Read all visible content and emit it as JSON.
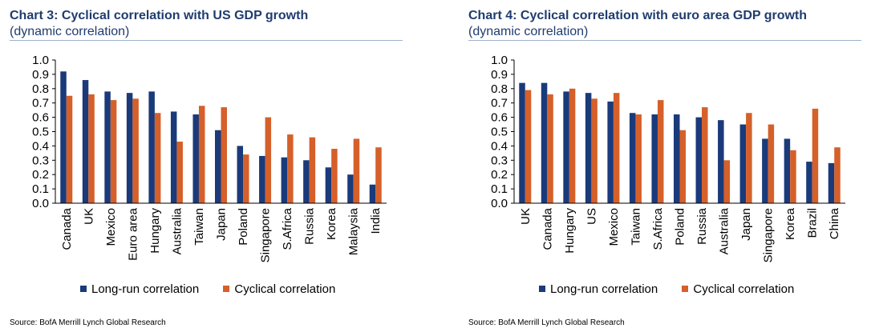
{
  "colors": {
    "long_run": "#1a3a7a",
    "cyclical": "#d5602a",
    "axis": "#000000"
  },
  "chart_data": [
    {
      "type": "bar",
      "title": "Chart 3: Cyclical correlation with US GDP growth",
      "subtitle": "(dynamic correlation)",
      "categories": [
        "Canada",
        "UK",
        "Mexico",
        "Euro area",
        "Hungary",
        "Australia",
        "Taiwan",
        "Japan",
        "Poland",
        "Singapore",
        "S.Africa",
        "Russia",
        "Korea",
        "Malaysia",
        "India"
      ],
      "series": [
        {
          "name": "Long-run correlation",
          "values": [
            0.92,
            0.86,
            0.78,
            0.77,
            0.78,
            0.64,
            0.62,
            0.51,
            0.4,
            0.33,
            0.32,
            0.3,
            0.25,
            0.2,
            0.13
          ]
        },
        {
          "name": "Cyclical correlation",
          "values": [
            0.75,
            0.76,
            0.72,
            0.73,
            0.63,
            0.43,
            0.68,
            0.67,
            0.34,
            0.6,
            0.48,
            0.46,
            0.38,
            0.45,
            0.39
          ]
        }
      ],
      "yticks": [
        "0.0",
        "0.1",
        "0.2",
        "0.3",
        "0.4",
        "0.5",
        "0.6",
        "0.7",
        "0.8",
        "0.9",
        "1.0"
      ],
      "ylim": [
        0,
        1
      ],
      "legend_position": "bottom",
      "source": "Source: BofA Merrill Lynch Global Research"
    },
    {
      "type": "bar",
      "title": "Chart 4: Cyclical correlation with euro area GDP growth",
      "subtitle": "(dynamic correlation)",
      "categories": [
        "UK",
        "Canada",
        "Hungary",
        "US",
        "Mexico",
        "Taiwan",
        "S.Africa",
        "Poland",
        "Russia",
        "Australia",
        "Japan",
        "Singapore",
        "Korea",
        "Brazil",
        "China"
      ],
      "series": [
        {
          "name": "Long-run correlation",
          "values": [
            0.84,
            0.84,
            0.78,
            0.77,
            0.71,
            0.63,
            0.62,
            0.62,
            0.6,
            0.58,
            0.55,
            0.45,
            0.45,
            0.29,
            0.28
          ]
        },
        {
          "name": "Cyclical correlation",
          "values": [
            0.79,
            0.76,
            0.8,
            0.73,
            0.77,
            0.62,
            0.72,
            0.51,
            0.67,
            0.3,
            0.63,
            0.55,
            0.37,
            0.66,
            0.39
          ]
        }
      ],
      "yticks": [
        "0.0",
        "0.1",
        "0.2",
        "0.3",
        "0.4",
        "0.5",
        "0.6",
        "0.7",
        "0.8",
        "0.9",
        "1.0"
      ],
      "ylim": [
        0,
        1
      ],
      "legend_position": "bottom",
      "source": "Source: BofA Merrill Lynch Global Research"
    }
  ]
}
